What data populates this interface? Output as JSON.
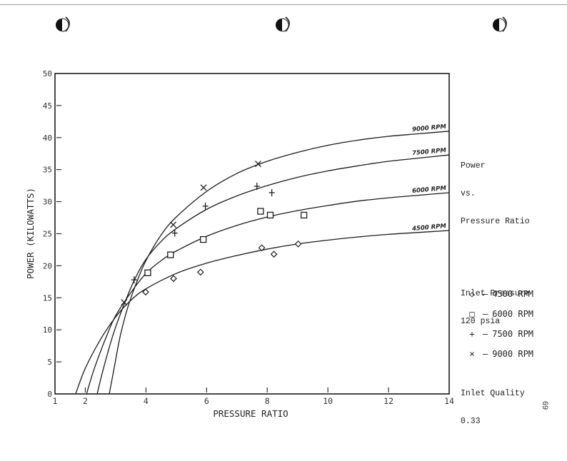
{
  "page": {
    "page_number": "69",
    "punch_holes": 3
  },
  "annotation": {
    "title_lines": [
      "Power",
      "vs.",
      "Pressure Ratio"
    ],
    "inlet_pressure_lines": [
      "Inlet Pressure",
      "120 psia"
    ],
    "inlet_quality_lines": [
      "Inlet Quality",
      "0.33"
    ]
  },
  "legend": {
    "items": [
      {
        "symbol": "diamond",
        "glyph": "◇",
        "label": "4500 RPM"
      },
      {
        "symbol": "square",
        "glyph": "□",
        "label": "6000 RPM"
      },
      {
        "symbol": "plus",
        "glyph": "+",
        "label": "7500 RPM"
      },
      {
        "symbol": "cross",
        "glyph": "×",
        "label": "9000 RPM"
      }
    ]
  },
  "chart_data": {
    "type": "scatter",
    "title": "Power vs. Pressure Ratio",
    "subtitle": "Inlet Pressure 120 psia; Inlet Quality 0.33",
    "xlabel": "PRESSURE RATIO",
    "ylabel": "POWER (KILOWATTS)",
    "xlim": [
      1,
      14
    ],
    "ylim": [
      0,
      50
    ],
    "xticks": [
      1,
      2,
      4,
      6,
      8,
      10,
      12,
      14
    ],
    "yticks": [
      0,
      5,
      10,
      15,
      20,
      25,
      30,
      35,
      40,
      45,
      50
    ],
    "grid": false,
    "legend_position": "right",
    "series": [
      {
        "name": "4500 RPM",
        "marker": "diamond",
        "curve_label": "4500 RPM",
        "points": [
          [
            3.99,
            15.9
          ],
          [
            4.91,
            18.0
          ],
          [
            5.8,
            19.0
          ],
          [
            7.82,
            22.8
          ],
          [
            8.22,
            21.8
          ],
          [
            9.02,
            23.4
          ]
        ],
        "fit_curve": [
          [
            1.68,
            0
          ],
          [
            2.0,
            4.0
          ],
          [
            2.5,
            8.5
          ],
          [
            3.0,
            12.0
          ],
          [
            3.5,
            14.6
          ],
          [
            4.0,
            16.4
          ],
          [
            5.0,
            18.8
          ],
          [
            6.0,
            20.4
          ],
          [
            7.0,
            21.6
          ],
          [
            8.0,
            22.6
          ],
          [
            9.0,
            23.4
          ],
          [
            10.0,
            24.0
          ],
          [
            11.0,
            24.5
          ],
          [
            12.0,
            24.9
          ],
          [
            13.0,
            25.2
          ],
          [
            14.0,
            25.5
          ]
        ]
      },
      {
        "name": "6000 RPM",
        "marker": "square",
        "curve_label": "6000 RPM",
        "points": [
          [
            4.06,
            18.9
          ],
          [
            4.81,
            21.7
          ],
          [
            5.89,
            24.1
          ],
          [
            7.78,
            28.5
          ],
          [
            8.1,
            27.9
          ],
          [
            9.21,
            27.9
          ]
        ],
        "fit_curve": [
          [
            2.04,
            0
          ],
          [
            2.3,
            4.0
          ],
          [
            2.7,
            9.0
          ],
          [
            3.0,
            12.2
          ],
          [
            3.5,
            15.8
          ],
          [
            4.0,
            18.8
          ],
          [
            4.5,
            20.8
          ],
          [
            5.0,
            22.3
          ],
          [
            6.0,
            24.6
          ],
          [
            7.0,
            26.3
          ],
          [
            8.0,
            27.6
          ],
          [
            9.0,
            28.6
          ],
          [
            10.0,
            29.4
          ],
          [
            11.0,
            30.1
          ],
          [
            12.0,
            30.6
          ],
          [
            13.0,
            31.0
          ],
          [
            14.0,
            31.4
          ]
        ]
      },
      {
        "name": "7500 RPM",
        "marker": "plus",
        "curve_label": "7500 RPM",
        "points": [
          [
            3.61,
            17.8
          ],
          [
            4.95,
            25.1
          ],
          [
            5.96,
            29.3
          ],
          [
            7.66,
            32.4
          ],
          [
            8.15,
            31.4
          ]
        ],
        "fit_curve": [
          [
            2.39,
            0
          ],
          [
            2.6,
            4.0
          ],
          [
            2.9,
            9.0
          ],
          [
            3.2,
            13.0
          ],
          [
            3.6,
            17.6
          ],
          [
            4.0,
            21.0
          ],
          [
            4.5,
            23.8
          ],
          [
            5.0,
            25.8
          ],
          [
            6.0,
            28.8
          ],
          [
            7.0,
            30.9
          ],
          [
            8.0,
            32.5
          ],
          [
            9.0,
            33.8
          ],
          [
            10.0,
            34.8
          ],
          [
            11.0,
            35.6
          ],
          [
            12.0,
            36.3
          ],
          [
            13.0,
            36.8
          ],
          [
            14.0,
            37.3
          ]
        ]
      },
      {
        "name": "9000 RPM",
        "marker": "cross",
        "curve_label": "9000 RPM",
        "points": [
          [
            3.28,
            14.3
          ],
          [
            4.9,
            26.4
          ],
          [
            5.9,
            32.2
          ],
          [
            7.7,
            35.9
          ]
        ],
        "fit_curve": [
          [
            2.79,
            0
          ],
          [
            2.95,
            4.0
          ],
          [
            3.15,
            9.0
          ],
          [
            3.4,
            13.5
          ],
          [
            3.7,
            17.5
          ],
          [
            4.0,
            20.8
          ],
          [
            4.5,
            24.8
          ],
          [
            5.0,
            27.6
          ],
          [
            6.0,
            31.6
          ],
          [
            7.0,
            34.4
          ],
          [
            8.0,
            36.3
          ],
          [
            9.0,
            37.7
          ],
          [
            10.0,
            38.8
          ],
          [
            11.0,
            39.6
          ],
          [
            12.0,
            40.2
          ],
          [
            13.0,
            40.6
          ],
          [
            14.0,
            41.0
          ]
        ]
      }
    ],
    "annotations": [
      "9000 RPM",
      "7500 RPM",
      "6000 RPM",
      "4500 RPM"
    ]
  },
  "axes": {
    "xlabel": "PRESSURE RATIO",
    "ylabel": "POWER (KILOWATTS)"
  }
}
